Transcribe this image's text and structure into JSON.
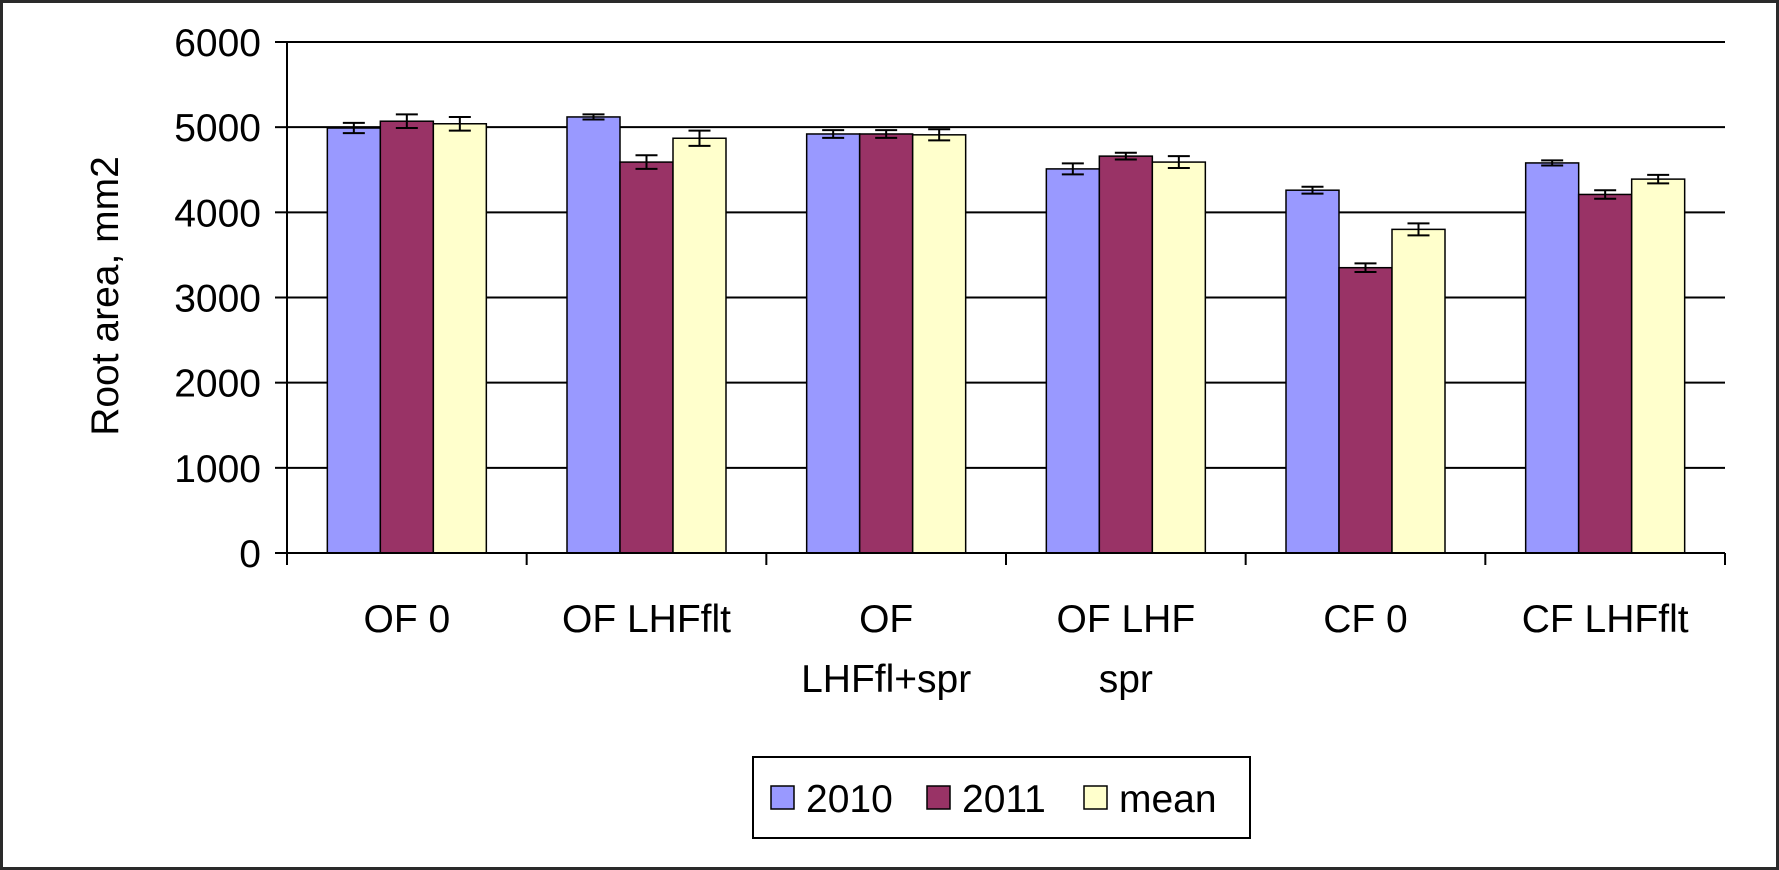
{
  "chart_data": {
    "type": "bar",
    "title": "",
    "xlabel": "",
    "ylabel": "Root area, mm2",
    "ylim": [
      0,
      6000
    ],
    "yticks": [
      0,
      1000,
      2000,
      3000,
      4000,
      5000,
      6000
    ],
    "grid": true,
    "legend_position": "bottom",
    "categories": [
      [
        "OF 0"
      ],
      [
        "OF LHFflt"
      ],
      [
        "OF",
        "LHFfl+spr"
      ],
      [
        "OF LHF",
        "spr"
      ],
      [
        "CF 0"
      ],
      [
        "CF LHFflt"
      ]
    ],
    "series": [
      {
        "name": "2010",
        "color": "#9999FF",
        "values": [
          4990,
          5120,
          4920,
          4510,
          4260,
          4580
        ],
        "errors": [
          60,
          30,
          45,
          65,
          40,
          30
        ]
      },
      {
        "name": "2011",
        "color": "#993366",
        "values": [
          5070,
          4590,
          4920,
          4660,
          3350,
          4210
        ]
      },
      {
        "name": "mean",
        "color": "#FFFFCC",
        "values": [
          5040,
          4870,
          4910,
          4590,
          3800,
          4390
        ]
      }
    ],
    "error_bars": [
      [
        60,
        30,
        45,
        65,
        40,
        30
      ],
      [
        80,
        80,
        45,
        40,
        50,
        50
      ],
      [
        80,
        90,
        65,
        70,
        70,
        50
      ]
    ]
  }
}
